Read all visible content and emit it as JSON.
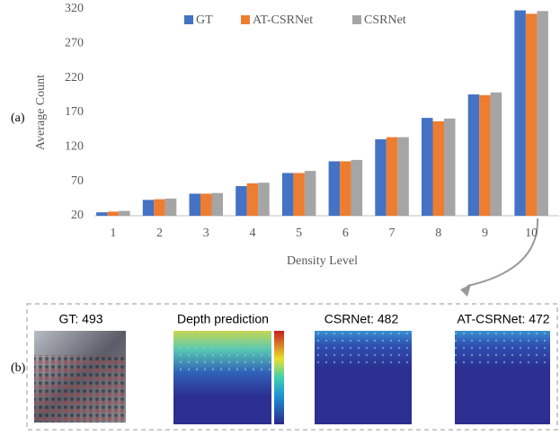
{
  "chart_data": {
    "type": "bar",
    "xlabel": "Density Level",
    "ylabel": "Average Count",
    "categories": [
      "1",
      "2",
      "3",
      "4",
      "5",
      "6",
      "7",
      "8",
      "9",
      "10"
    ],
    "series": [
      {
        "name": "GT",
        "color": "#4472c4",
        "values": [
          25,
          43,
          52,
          63,
          82,
          99,
          131,
          162,
          196,
          318
        ]
      },
      {
        "name": "AT-CSRNet",
        "color": "#ed7d31",
        "values": [
          26,
          44,
          52,
          67,
          82,
          99,
          134,
          157,
          195,
          313
        ]
      },
      {
        "name": "CSRNet",
        "color": "#a5a5a5",
        "values": [
          27,
          45,
          53,
          68,
          85,
          101,
          134,
          161,
          199,
          317
        ]
      }
    ],
    "ylim": [
      20,
      320
    ],
    "yticks": [
      20,
      70,
      120,
      170,
      220,
      270,
      320
    ],
    "grid": false,
    "legend": "top"
  },
  "panel_a_label": "(a)",
  "panel_b": {
    "label": "(b)",
    "captions": [
      "GT: 493",
      "Depth prediction",
      "CSRNet: 482",
      "AT-CSRNet: 472"
    ]
  }
}
